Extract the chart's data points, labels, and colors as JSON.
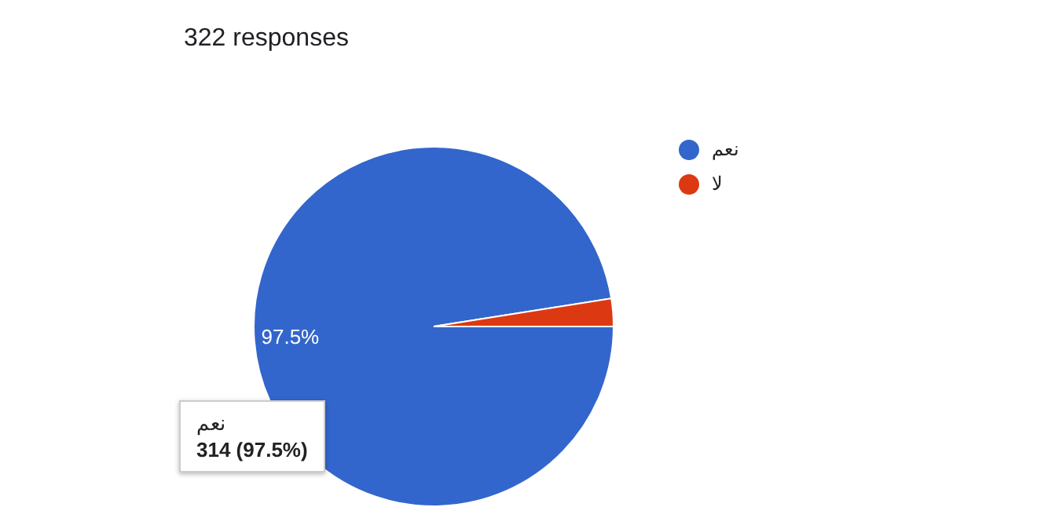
{
  "chart_data": {
    "type": "pie",
    "subtitle": "322 responses",
    "categories": [
      "نعم",
      "لا"
    ],
    "values": [
      97.5,
      2.5
    ],
    "colors": [
      "#3366cc",
      "#dc3912"
    ],
    "value_labels": [
      "97.5%",
      null
    ],
    "legend": "top right",
    "annotations": [
      "نعم",
      "314 (97.5%)"
    ]
  }
}
